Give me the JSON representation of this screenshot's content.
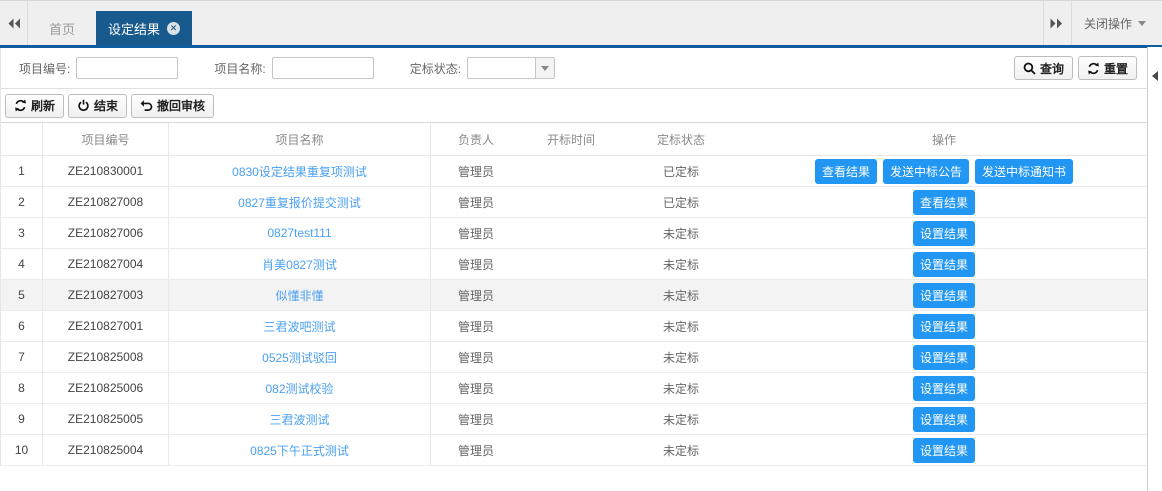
{
  "tabs": {
    "home_label": "首页",
    "active_label": "设定结果",
    "close_ops_label": "关闭操作"
  },
  "search": {
    "project_no_label": "项目编号:",
    "project_no_value": "",
    "project_name_label": "项目名称:",
    "project_name_value": "",
    "bid_status_label": "定标状态:",
    "bid_status_value": "",
    "query_label": "查询",
    "reset_label": "重置"
  },
  "toolbar": {
    "refresh_label": "刷新",
    "end_label": "结束",
    "withdraw_label": "撤回审核"
  },
  "table": {
    "headers": [
      "项目编号",
      "项目名称",
      "负责人",
      "开标时间",
      "定标状态",
      "操作"
    ],
    "rows": [
      {
        "no": "1",
        "code": "ZE210830001",
        "name": "0830设定结果重复项测试",
        "owner": "管理员",
        "open_time": "",
        "status": "已定标",
        "actions": [
          "查看结果",
          "发送中标公告",
          "发送中标通知书"
        ],
        "highlight": false
      },
      {
        "no": "2",
        "code": "ZE210827008",
        "name": "0827重复报价提交测试",
        "owner": "管理员",
        "open_time": "",
        "status": "已定标",
        "actions": [
          "查看结果"
        ],
        "highlight": false
      },
      {
        "no": "3",
        "code": "ZE210827006",
        "name": "0827test111",
        "owner": "管理员",
        "open_time": "",
        "status": "未定标",
        "actions": [
          "设置结果"
        ],
        "highlight": false
      },
      {
        "no": "4",
        "code": "ZE210827004",
        "name": "肖美0827测试",
        "owner": "管理员",
        "open_time": "",
        "status": "未定标",
        "actions": [
          "设置结果"
        ],
        "highlight": false
      },
      {
        "no": "5",
        "code": "ZE210827003",
        "name": "似懂非懂",
        "owner": "管理员",
        "open_time": "",
        "status": "未定标",
        "actions": [
          "设置结果"
        ],
        "highlight": true
      },
      {
        "no": "6",
        "code": "ZE210827001",
        "name": "三君波吧测试",
        "owner": "管理员",
        "open_time": "",
        "status": "未定标",
        "actions": [
          "设置结果"
        ],
        "highlight": false
      },
      {
        "no": "7",
        "code": "ZE210825008",
        "name": "0525测试驳回",
        "owner": "管理员",
        "open_time": "",
        "status": "未定标",
        "actions": [
          "设置结果"
        ],
        "highlight": false
      },
      {
        "no": "8",
        "code": "ZE210825006",
        "name": "082测试校验",
        "owner": "管理员",
        "open_time": "",
        "status": "未定标",
        "actions": [
          "设置结果"
        ],
        "highlight": false
      },
      {
        "no": "9",
        "code": "ZE210825005",
        "name": "三君波测试",
        "owner": "管理员",
        "open_time": "",
        "status": "未定标",
        "actions": [
          "设置结果"
        ],
        "highlight": false
      },
      {
        "no": "10",
        "code": "ZE210825004",
        "name": "0825下午正式测试",
        "owner": "管理员",
        "open_time": "",
        "status": "未定标",
        "actions": [
          "设置结果"
        ],
        "highlight": false
      }
    ]
  },
  "colors": {
    "active_tab": "#185a8d",
    "tab_underline": "#0f5ca0",
    "action_button": "#2196f3",
    "link": "#4aa0f2"
  }
}
